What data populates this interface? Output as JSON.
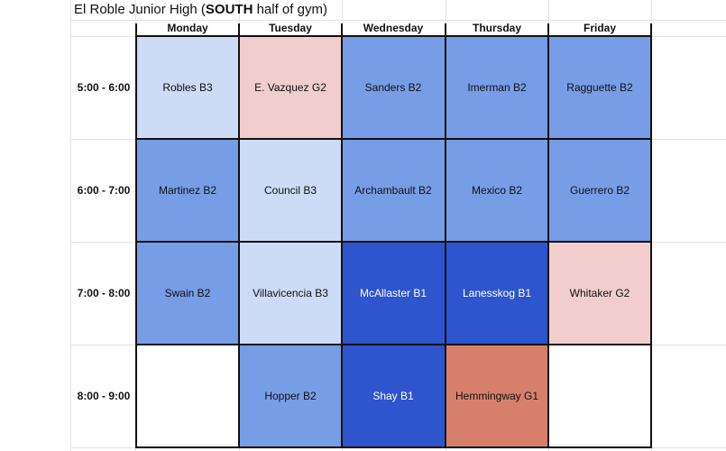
{
  "title": {
    "prefix": "El Roble Junior High (",
    "emphasis": "SOUTH",
    "suffix": " half of gym)"
  },
  "days": [
    "Monday",
    "Tuesday",
    "Wednesday",
    "Thursday",
    "Friday"
  ],
  "time_slots": [
    "5:00 - 6:00",
    "6:00 - 7:00",
    "7:00 - 8:00",
    "8:00 - 9:00"
  ],
  "colors": {
    "b1": "#2e55cd",
    "b2": "#769de6",
    "b3": "#cedbf7",
    "g1": "#d6806c",
    "g2": "#f1cecd",
    "empty": "#ffffff",
    "dark_text": "#ffffff",
    "grid": "#111111"
  },
  "schedule": [
    [
      {
        "label": "Robles B3",
        "level": "b3"
      },
      {
        "label": "E. Vazquez G2",
        "level": "g2"
      },
      {
        "label": "Sanders B2",
        "level": "b2"
      },
      {
        "label": "Imerman B2",
        "level": "b2"
      },
      {
        "label": "Ragguette B2",
        "level": "b2"
      }
    ],
    [
      {
        "label": "Martinez B2",
        "level": "b2"
      },
      {
        "label": "Council B3",
        "level": "b3"
      },
      {
        "label": "Archambault B2",
        "level": "b2"
      },
      {
        "label": "Mexico B2",
        "level": "b2"
      },
      {
        "label": "Guerrero B2",
        "level": "b2"
      }
    ],
    [
      {
        "label": "Swain B2",
        "level": "b2"
      },
      {
        "label": "Villavicencia B3",
        "level": "b3"
      },
      {
        "label": "McAllaster B1",
        "level": "b1"
      },
      {
        "label": "Lanesskog B1",
        "level": "b1"
      },
      {
        "label": "Whitaker G2",
        "level": "g2"
      }
    ],
    [
      {
        "label": "",
        "level": "empty"
      },
      {
        "label": "Hopper B2",
        "level": "b2"
      },
      {
        "label": "Shay B1",
        "level": "b1"
      },
      {
        "label": "Hemmingway G1",
        "level": "g1"
      },
      {
        "label": "",
        "level": "empty"
      }
    ]
  ]
}
